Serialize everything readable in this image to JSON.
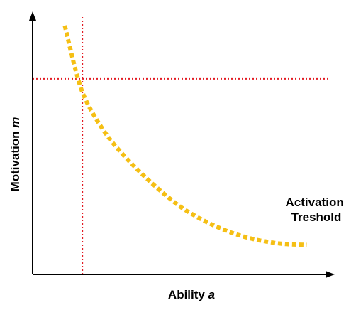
{
  "chart_data": {
    "type": "line",
    "title": "",
    "xlabel": "Ability",
    "xlabel_var": "a",
    "ylabel": "Motivation",
    "ylabel_var": "m",
    "xlim": [
      0,
      100
    ],
    "ylim": [
      0,
      100
    ],
    "grid": false,
    "ticks": false,
    "series": [
      {
        "name": "Activation Treshold",
        "name_lines": [
          "Activation",
          "Treshold"
        ],
        "style": "dotted",
        "color": "#f5bf14",
        "x": [
          10.8,
          13,
          15,
          17,
          20,
          25,
          30,
          35,
          40,
          45,
          50,
          55,
          60,
          65,
          70,
          75,
          80,
          85,
          92
        ],
        "y": [
          96.7,
          86,
          77,
          70,
          63,
          54,
          47,
          41,
          35.5,
          30.5,
          26,
          22.5,
          19.5,
          17,
          15,
          13.5,
          12.5,
          11.8,
          11.5
        ]
      }
    ],
    "reference_lines": [
      {
        "orientation": "vertical",
        "x": 16.7,
        "color": "#e31b23",
        "style": "dotted"
      },
      {
        "orientation": "horizontal",
        "y": 76,
        "color": "#e31b23",
        "style": "dotted"
      }
    ]
  }
}
